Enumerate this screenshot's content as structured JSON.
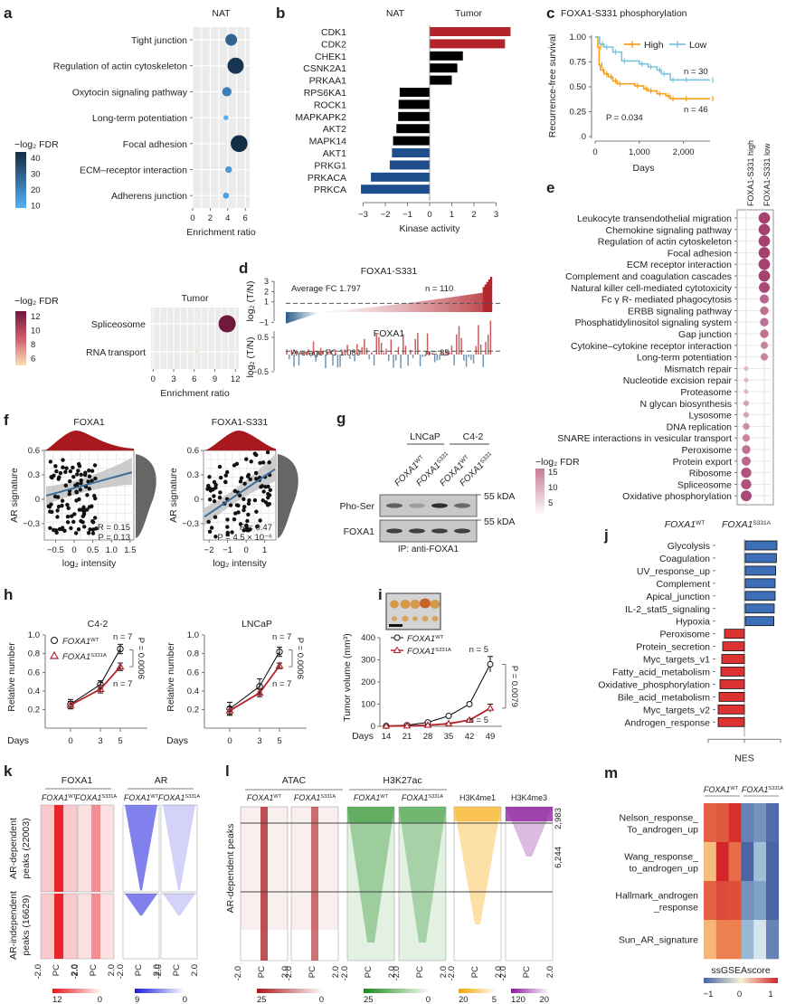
{
  "chart_data": [
    {
      "panel": "a",
      "type": "scatter",
      "subtype": "dot-plot",
      "sections": [
        {
          "title": "NAT",
          "xlabel": "Enrichment ratio",
          "xlim": [
            0,
            6.5
          ],
          "xticks": [
            "0",
            "2",
            "4",
            "6"
          ],
          "legend_title": "−log₂ FDR",
          "legend_ticks": [
            "40",
            "30",
            "20",
            "10"
          ],
          "categories": [
            "Tight junction",
            "Regulation of actin cytoskeleton",
            "Oxytocin signaling pathway",
            "Long-term potentiation",
            "Focal adhesion",
            "ECM–receptor interaction",
            "Adherens junction"
          ],
          "values": [
            4.4,
            4.9,
            3.9,
            3.8,
            5.3,
            4.1,
            3.8
          ],
          "fdr": [
            28,
            42,
            20,
            6,
            44,
            12,
            10
          ]
        },
        {
          "title": "Tumor",
          "xlabel": "Enrichment ratio",
          "xlim": [
            0,
            12.5
          ],
          "xticks": [
            "0",
            "3",
            "6",
            "9",
            "12"
          ],
          "legend_title": "−log₂ FDR",
          "legend_ticks": [
            "12",
            "10",
            "8",
            "6"
          ],
          "categories": [
            "Spliceosome",
            "RNA transport"
          ],
          "values": [
            10.8,
            6.3
          ],
          "fdr": [
            12.5,
            4.5
          ]
        }
      ]
    },
    {
      "panel": "b",
      "type": "bar",
      "orientation": "horizontal",
      "title_left": "NAT",
      "title_right": "Tumor",
      "xlabel": "Kinase activity",
      "xlim": [
        -3.2,
        3.7
      ],
      "xticks": [
        "−3",
        "−2",
        "−1",
        "0",
        "1",
        "2",
        "3"
      ],
      "categories": [
        "CDK1",
        "CDK2",
        "CHEK1",
        "CSNK2A1",
        "PRKAA1",
        "RPS6KA1",
        "ROCK1",
        "MAPKAPK2",
        "AKT2",
        "MAPK14",
        "AKT1",
        "PRKG1",
        "PRKACA",
        "PRKCA"
      ],
      "values": [
        3.65,
        3.4,
        1.5,
        1.25,
        1.0,
        -1.35,
        -1.4,
        -1.42,
        -1.5,
        -1.65,
        -1.7,
        -1.8,
        -2.65,
        -3.1
      ],
      "colors": [
        "#b5232a",
        "#b5232a",
        "#000000",
        "#000000",
        "#000000",
        "#000000",
        "#000000",
        "#000000",
        "#000000",
        "#000000",
        "#1f4e8c",
        "#1f4e8c",
        "#1f4e8c",
        "#1f4e8c"
      ]
    },
    {
      "panel": "c",
      "type": "line",
      "subtype": "kaplan-meier",
      "title": "FOXA1-S331 phosphorylation",
      "xlabel": "Days",
      "ylabel": "Recurrence-free survival",
      "xlim": [
        0,
        2600
      ],
      "ylim": [
        0,
        1
      ],
      "xticks": [
        "0",
        "1,000",
        "2,000"
      ],
      "yticks": [
        "0",
        "0.25",
        "0.50",
        "0.75",
        "1.00"
      ],
      "annotation": "P = 0.034",
      "series": [
        {
          "name": "High",
          "color": "#f5a01a",
          "n_label": "n = 46",
          "x": [
            0,
            60,
            90,
            120,
            200,
            300,
            400,
            500,
            900,
            1100,
            1200,
            1400,
            1600,
            1700,
            2000,
            2600
          ],
          "y": [
            1.0,
            0.9,
            0.72,
            0.67,
            0.63,
            0.6,
            0.56,
            0.53,
            0.51,
            0.48,
            0.46,
            0.43,
            0.41,
            0.38,
            0.38,
            0.38
          ]
        },
        {
          "name": "Low",
          "color": "#7ec3dc",
          "n_label": "n = 30",
          "x": [
            0,
            100,
            200,
            400,
            600,
            1000,
            1200,
            1400,
            1500,
            1700,
            2000,
            2600
          ],
          "y": [
            1.0,
            0.93,
            0.9,
            0.85,
            0.76,
            0.73,
            0.7,
            0.67,
            0.63,
            0.57,
            0.57,
            0.57
          ]
        }
      ]
    },
    {
      "panel": "d",
      "type": "bar",
      "subtype": "waterfall",
      "ylabel": "log₂ (T/N)",
      "sections": [
        {
          "title": "FOXA1-S331",
          "note": "Average FC 1.797",
          "n_label": "n = 110",
          "yticks": [
            "−1",
            "1",
            "2",
            "3"
          ],
          "ylim": [
            -1.3,
            3.8
          ],
          "n": 110,
          "min": -1.1,
          "max": 3.5,
          "n_negative": 17,
          "ref_line": 0.85
        },
        {
          "title": "FOXA1",
          "note": "Average FC 1.089",
          "n_label": "n = 85",
          "yticks": [
            "−0.5",
            "0.5"
          ],
          "ylim": [
            -0.6,
            1.0
          ],
          "n": 85,
          "ref_line": 0.1
        }
      ]
    },
    {
      "panel": "e",
      "type": "scatter",
      "subtype": "dot-plot",
      "columns": [
        "FOXA1-S331 high",
        "FOXA1-S331 low"
      ],
      "legend_title": "−log₂ FDR",
      "legend_ticks": [
        "15",
        "10",
        "5"
      ],
      "categories": [
        "Leukocyte transendothelial migration",
        "Chemokine signaling pathway",
        "Regulation of actin cytoskeleton",
        "Focal adhesion",
        "ECM receptor interaction",
        "Complement and coagulation cascades",
        "Natural killer cell-mediated cytotoxicity",
        "Fc γ R- mediated phagocytosis",
        "ERBB signaling pathway",
        "Phosphatidylinositol signaling system",
        "Gap junction",
        "Cytokine–cytokine receptor interaction",
        "Long-term potentiation",
        "Mismatch repair",
        "Nucleotide excision repair",
        "Proteasome",
        "N glycan biosynthesis",
        "Lysosome",
        "DNA replication",
        "SNARE interactions in vesicular transport",
        "Peroxisome",
        "Protein export",
        "Ribosome",
        "Spliceosome",
        "Oxidative phosphorylation"
      ],
      "column_index": [
        1,
        1,
        1,
        1,
        1,
        1,
        1,
        1,
        1,
        1,
        1,
        1,
        1,
        0,
        0,
        0,
        0,
        0,
        0,
        0,
        0,
        0,
        0,
        0,
        0
      ],
      "fdr": [
        15,
        15,
        15,
        15,
        15,
        15,
        14,
        11,
        10,
        10,
        10,
        8,
        8,
        3,
        3,
        3,
        5,
        5,
        7,
        8,
        10,
        11,
        13,
        13,
        14
      ]
    },
    {
      "panel": "f",
      "type": "scatter",
      "ylabel": "AR signature",
      "xlabel": "log₂ intensity",
      "sections": [
        {
          "title": "FOXA1",
          "xlim": [
            -0.8,
            1.6
          ],
          "ylim": [
            -0.5,
            0.6
          ],
          "xticks": [
            "−0.5",
            "0",
            "0.5",
            "1.0",
            "1.5"
          ],
          "yticks": [
            "−0.3",
            "0",
            "0.3",
            "0.6"
          ],
          "R": "R = 0.15",
          "P": "P = 0.13",
          "fit": {
            "slope": 0.12,
            "intercept": 0.14
          }
        },
        {
          "title": "FOXA1-S331",
          "xlim": [
            -2.3,
            1.6
          ],
          "ylim": [
            -0.5,
            0.6
          ],
          "xticks": [
            "−2",
            "−1",
            "0",
            "1"
          ],
          "yticks": [
            "−0.3",
            "0",
            "0.3",
            "0.6"
          ],
          "R": "R = 0.47",
          "P": "P = 4.5 × 10⁻⁶",
          "fit": {
            "slope": 0.15,
            "intercept": 0.13
          }
        }
      ]
    },
    {
      "panel": "g",
      "type": "table",
      "subtype": "western-blot",
      "groups": [
        "LNCaP",
        "C4-2"
      ],
      "lanes": [
        "FOXA1WT",
        "FOXA1S331",
        "FOXA1WT",
        "FOXA1S331"
      ],
      "rows": [
        "Pho-Ser",
        "FOXA1"
      ],
      "marker": "55 kDA",
      "footer": "IP: anti-FOXA1",
      "band_intensity": [
        [
          0.6,
          0.25,
          0.9,
          0.55
        ],
        [
          0.8,
          0.8,
          0.8,
          0.8
        ]
      ]
    },
    {
      "panel": "h",
      "type": "line",
      "ylabel": "Relative number",
      "xlabel": "Days",
      "x": [
        0,
        3,
        5
      ],
      "ylim": [
        0.1,
        1.0
      ],
      "yticks": [
        "0.2",
        "0.4",
        "0.6",
        "0.8",
        "1.0"
      ],
      "xticks": [
        "0",
        "3",
        "5"
      ],
      "legend": [
        "FOXA1WT",
        "FOXA1S331A"
      ],
      "sections": [
        {
          "title": "C4-2",
          "p": "P = 0.0006",
          "n_top": "n = 7",
          "n_bottom": "n = 7",
          "series": [
            {
              "name": "FOXA1WT",
              "color": "#000000",
              "values": [
                0.26,
                0.47,
                0.85
              ],
              "err": [
                0.05,
                0.04,
                0.05
              ]
            },
            {
              "name": "FOXA1S331A",
              "color": "#b5232a",
              "values": [
                0.25,
                0.42,
                0.66
              ],
              "err": [
                0.04,
                0.04,
                0.04
              ]
            }
          ]
        },
        {
          "title": "LNCaP",
          "p": "P = 0.0006",
          "n_top": "n = 7",
          "n_bottom": "n = 7",
          "series": [
            {
              "name": "FOXA1WT",
              "color": "#000000",
              "values": [
                0.21,
                0.45,
                0.82
              ],
              "err": [
                0.07,
                0.08,
                0.05
              ]
            },
            {
              "name": "FOXA1S331A",
              "color": "#b5232a",
              "values": [
                0.19,
                0.38,
                0.67
              ],
              "err": [
                0.04,
                0.04,
                0.03
              ]
            }
          ]
        }
      ]
    },
    {
      "panel": "i",
      "type": "line",
      "ylabel": "Tumor volume (mm³)",
      "xlabel": "Days",
      "x": [
        14,
        21,
        28,
        35,
        42,
        49
      ],
      "ylim": [
        0,
        400
      ],
      "yticks": [
        "0",
        "100",
        "200",
        "300",
        "400"
      ],
      "p": "P = 0.0079",
      "n_top": "n = 5",
      "n_bottom": "n = 5",
      "series": [
        {
          "name": "FOXA1WT",
          "color": "#000000",
          "values": [
            2,
            5,
            18,
            47,
            100,
            280
          ],
          "err": [
            2,
            3,
            4,
            6,
            8,
            35
          ]
        },
        {
          "name": "FOXA1S331A",
          "color": "#b5232a",
          "values": [
            1,
            2,
            5,
            12,
            28,
            82
          ],
          "err": [
            1,
            2,
            2,
            3,
            4,
            18
          ]
        }
      ]
    },
    {
      "panel": "j",
      "type": "bar",
      "orientation": "horizontal",
      "xlabel": "NES",
      "header_left": "FOXA1WT",
      "header_right": "FOXA1S331A",
      "xlim": [
        -2,
        2
      ],
      "categories": [
        "Glycolysis",
        "Coagulation",
        "UV_response_up",
        "Complement",
        "Apical_junction",
        "IL-2_stat5_signaling",
        "Hypoxia",
        "Peroxisome",
        "Protein_secretion",
        "Myc_targets_v1",
        "Fatty_acid_metabolism",
        "Oxidative_phosphorylation",
        "Bile_acid_metabolism",
        "Myc_targets_v2",
        "Androgen_response"
      ],
      "values": [
        1.75,
        1.72,
        1.68,
        1.65,
        1.65,
        1.6,
        1.58,
        -1.1,
        -1.2,
        -1.25,
        -1.3,
        -1.35,
        -1.4,
        -1.45,
        -1.45
      ]
    },
    {
      "panel": "k",
      "type": "heatmap",
      "groups": [
        {
          "title": "FOXA1",
          "color": "#e8141b",
          "scale": [
            "12",
            "0"
          ]
        },
        {
          "title": "AR",
          "color": "#1a1ae0",
          "scale": [
            "9",
            "0"
          ]
        }
      ],
      "columns": [
        "FOXA1WT",
        "FOXA1S331A",
        "FOXA1WT",
        "FOXA1S331A"
      ],
      "rows": [
        "AR-dependent peaks (22003)",
        "AR-independent peaks (16629)"
      ],
      "xticks": [
        "−2.0",
        "PC",
        "2.0"
      ]
    },
    {
      "panel": "l",
      "type": "heatmap",
      "row_label": "AR-dependent peaks",
      "row_counts": [
        "2,983",
        "6,244"
      ],
      "groups": [
        {
          "title": "ATAC",
          "columns": [
            "FOXA1WT",
            "FOXA1S331A"
          ],
          "color": "#a8191e",
          "scale": [
            "25",
            "0"
          ]
        },
        {
          "title": "H3K27ac",
          "columns": [
            "FOXA1WT",
            "FOXA1S331A"
          ],
          "color": "#1a8a1a",
          "scale": [
            "25",
            "0"
          ]
        },
        {
          "title": "",
          "columns": [
            "H3K4me1"
          ],
          "color": "#f5a500",
          "scale": [
            "20",
            "5"
          ]
        },
        {
          "title": "",
          "columns": [
            "H3K4me3"
          ],
          "color": "#8a1a9a",
          "scale": [
            "120",
            "20"
          ]
        }
      ],
      "xticks": [
        "−2.0",
        "PC",
        "2.0"
      ]
    },
    {
      "panel": "m",
      "type": "heatmap",
      "legend_title": "ssGSEAscore",
      "legend_ticks": [
        "−1",
        "0",
        "1"
      ],
      "column_groups": [
        "FOXA1WT",
        "FOXA1S331A"
      ],
      "rows": [
        "Nelson_response_ To_androgen_up",
        "Wang_response_ to_androgen_up",
        "Hallmark_androgen _response",
        "Sun_AR_signature"
      ],
      "values": [
        [
          0.7,
          0.75,
          0.95,
          -0.8,
          -0.7,
          -0.95
        ],
        [
          0.2,
          1.0,
          0.65,
          -1.0,
          -0.4,
          -1.0
        ],
        [
          0.7,
          0.82,
          0.8,
          -0.7,
          -0.6,
          -1.0
        ],
        [
          0.25,
          0.55,
          0.55,
          -0.45,
          -0.1,
          -0.8
        ]
      ]
    }
  ],
  "labels": {
    "panels": [
      "a",
      "b",
      "c",
      "d",
      "e",
      "f",
      "g",
      "h",
      "i",
      "j",
      "k",
      "l",
      "m"
    ],
    "sup_WT": "WT",
    "sup_S331": "S331",
    "sup_S331A": "S331A",
    "foxa1": "FOXA1",
    "days": "Days",
    "kda": "55 kDA"
  }
}
